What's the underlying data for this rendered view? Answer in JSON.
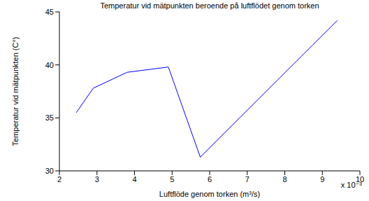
{
  "chart_data": {
    "type": "line",
    "title": "Temperatur vid mätpunkten beroende på luftflödet genom torken",
    "x_label": "Luftflöde genom torken (m³/s)",
    "y_label": "Temperatur vid mätpunkten (C°)",
    "annotations": [
      "x 10⁻³"
    ],
    "x": [
      2.45,
      2.9,
      3.8,
      4.9,
      5.75,
      9.4
    ],
    "values": [
      35.5,
      37.8,
      39.3,
      39.8,
      31.3,
      44.2
    ],
    "color": "#0000ff",
    "xlim": [
      2,
      10
    ],
    "xticks": [
      2,
      3,
      4,
      5,
      6,
      7,
      8,
      9,
      10
    ],
    "ylim": [
      30,
      45
    ],
    "yticks": [
      30,
      35,
      40,
      45
    ],
    "grid": false
  }
}
